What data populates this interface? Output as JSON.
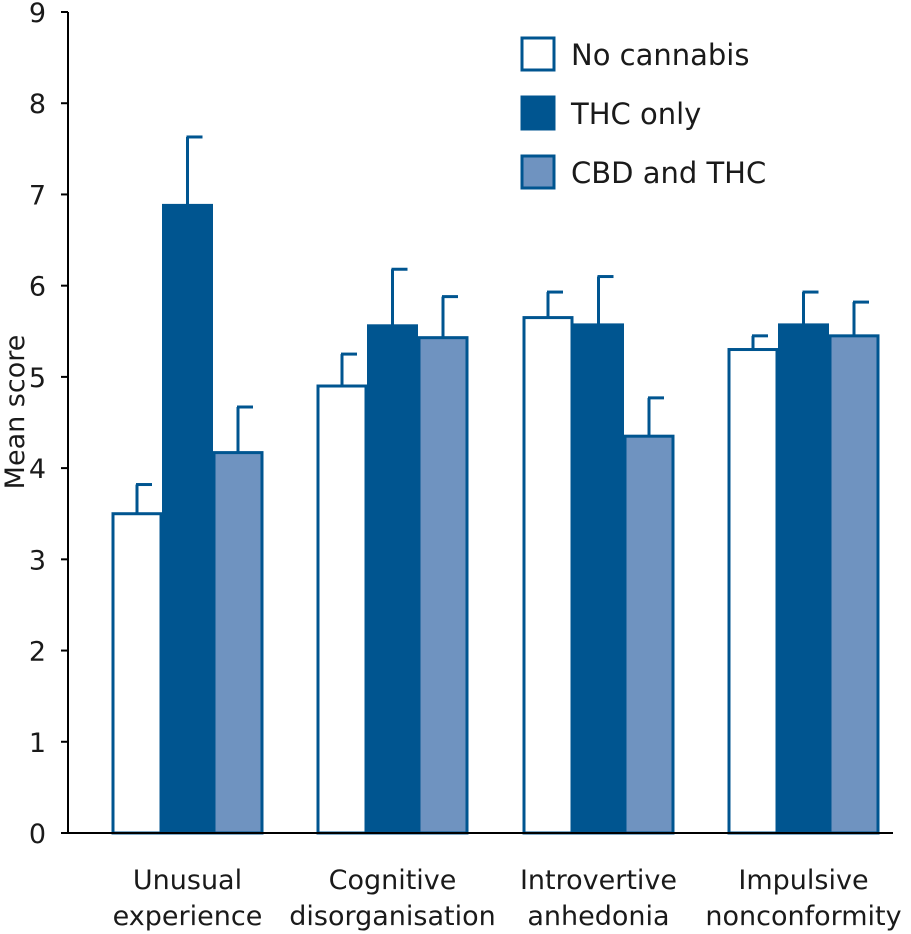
{
  "chart_data": {
    "type": "bar",
    "ylabel": "Mean score",
    "ylim": [
      0,
      9
    ],
    "yticks": [
      "0",
      "1",
      "2",
      "3",
      "4",
      "5",
      "6",
      "7",
      "8",
      "9"
    ],
    "categories": [
      [
        "Unusual",
        "experience"
      ],
      [
        "Cognitive",
        "disorganisation"
      ],
      [
        "Introvertive",
        "anhedonia"
      ],
      [
        "Impulsive",
        "nonconformity"
      ]
    ],
    "series": [
      {
        "name": "No cannabis",
        "color": "#ffffff",
        "values": [
          3.5,
          4.9,
          5.65,
          5.3
        ],
        "errors": [
          0.32,
          0.35,
          0.28,
          0.15
        ]
      },
      {
        "name": "THC only",
        "color": "#005590",
        "values": [
          6.88,
          5.56,
          5.57,
          5.57
        ],
        "errors": [
          0.75,
          0.62,
          0.53,
          0.36
        ]
      },
      {
        "name": "CBD and THC",
        "color": "#6f93c0",
        "values": [
          4.17,
          5.43,
          4.35,
          5.45
        ],
        "errors": [
          0.5,
          0.45,
          0.42,
          0.37
        ]
      }
    ],
    "legend": "top-right",
    "grid": false,
    "edge_color": "#005590"
  }
}
